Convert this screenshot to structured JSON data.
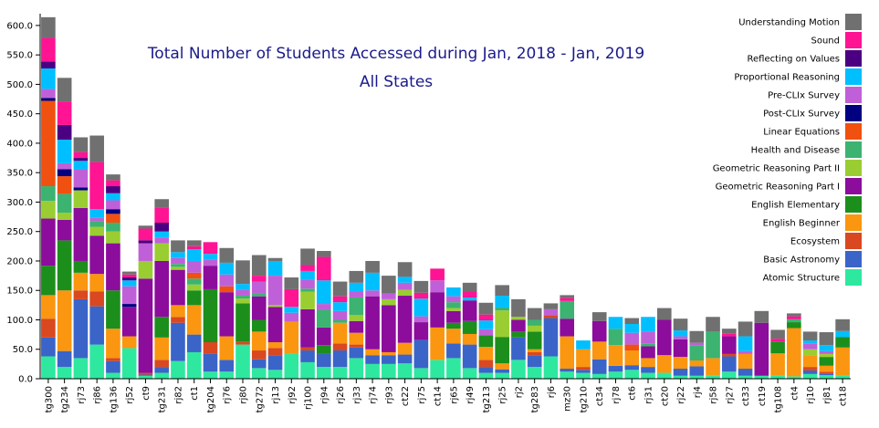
{
  "chart_data": {
    "type": "bar",
    "stacked": true,
    "title": "Total Number of Students Accessed during Jan, 2018 - Jan, 2019",
    "subtitle": "All States",
    "xlabel": "",
    "ylabel": "",
    "ylim": [
      0,
      620
    ],
    "yticks": [
      0,
      50,
      100,
      150,
      200,
      250,
      300,
      350,
      400,
      450,
      500,
      550,
      600
    ],
    "legend_position": "right",
    "categories": [
      "tg300",
      "tg234",
      "rj73",
      "rj86",
      "tg136",
      "rj52",
      "ct9",
      "tg231",
      "rj82",
      "ct1",
      "tg204",
      "rj76",
      "rj80",
      "tg272",
      "rj13",
      "rj92",
      "rj100",
      "rj94",
      "rj26",
      "rj33",
      "rj74",
      "rj93",
      "ct22",
      "rj75",
      "ct14",
      "rj65",
      "rj49",
      "tg213",
      "rj25",
      "rj2",
      "tg283",
      "rj6",
      "mz30",
      "tg210",
      "ct34",
      "rj78",
      "ct6",
      "rj31",
      "ct20",
      "rj22",
      "rj4",
      "rj58",
      "rj27",
      "ct33",
      "ct19",
      "tg108",
      "ct4",
      "rj10",
      "rj81",
      "ct18"
    ],
    "series": [
      {
        "name": "Atomic Structure",
        "color": "#2ee8a0",
        "values": [
          38,
          20,
          35,
          58,
          10,
          52,
          5,
          10,
          30,
          45,
          12,
          12,
          58,
          18,
          15,
          42,
          28,
          20,
          20,
          35,
          25,
          25,
          26,
          18,
          32,
          35,
          18,
          10,
          10,
          32,
          20,
          38,
          12,
          10,
          8,
          12,
          15,
          10,
          10,
          5,
          5,
          5,
          12,
          5,
          5,
          5,
          4,
          8,
          6,
          5
        ]
      },
      {
        "name": "Basic Astronomy",
        "color": "#3a64c8",
        "values": [
          32,
          27,
          100,
          65,
          20,
          0,
          2,
          10,
          65,
          30,
          30,
          20,
          0,
          15,
          25,
          0,
          20,
          22,
          28,
          18,
          15,
          15,
          15,
          48,
          0,
          25,
          40,
          10,
          6,
          38,
          20,
          65,
          5,
          5,
          25,
          10,
          8,
          10,
          0,
          12,
          16,
          0,
          26,
          12,
          0,
          0,
          0,
          6,
          3,
          0
        ]
      },
      {
        "name": "Ecosystem",
        "color": "#d94820",
        "values": [
          32,
          0,
          15,
          25,
          5,
          0,
          3,
          12,
          10,
          0,
          20,
          0,
          5,
          15,
          12,
          0,
          5,
          0,
          12,
          5,
          0,
          0,
          0,
          0,
          0,
          0,
          0,
          12,
          0,
          0,
          5,
          5,
          0,
          5,
          0,
          0,
          0,
          0,
          0,
          0,
          0,
          0,
          4,
          0,
          0,
          0,
          0,
          6,
          3,
          0
        ]
      },
      {
        "name": "English Beginner",
        "color": "#fa9610",
        "values": [
          40,
          103,
          30,
          30,
          50,
          20,
          0,
          38,
          20,
          50,
          0,
          40,
          0,
          32,
          10,
          55,
          0,
          0,
          35,
          20,
          10,
          5,
          20,
          0,
          55,
          25,
          18,
          22,
          10,
          0,
          5,
          0,
          55,
          30,
          30,
          35,
          25,
          15,
          30,
          20,
          10,
          30,
          0,
          25,
          0,
          38,
          82,
          20,
          10,
          48
        ]
      },
      {
        "name": "English Elementary",
        "color": "#1c8e1c",
        "values": [
          50,
          85,
          20,
          0,
          65,
          0,
          0,
          35,
          0,
          25,
          90,
          0,
          65,
          20,
          0,
          0,
          0,
          15,
          0,
          0,
          0,
          0,
          0,
          0,
          0,
          10,
          22,
          20,
          45,
          10,
          30,
          0,
          0,
          0,
          0,
          0,
          0,
          0,
          0,
          0,
          0,
          0,
          0,
          0,
          0,
          20,
          10,
          0,
          15,
          18
        ]
      },
      {
        "name": "Geometric Reasoning Part I",
        "color": "#8c0c9c",
        "values": [
          80,
          35,
          90,
          65,
          80,
          50,
          160,
          95,
          60,
          0,
          40,
          75,
          0,
          40,
          60,
          0,
          65,
          30,
          0,
          20,
          90,
          80,
          80,
          30,
          60,
          20,
          35,
          0,
          0,
          20,
          0,
          0,
          30,
          0,
          35,
          0,
          0,
          20,
          60,
          30,
          0,
          0,
          30,
          0,
          90,
          0,
          0,
          0,
          0,
          0
        ]
      },
      {
        "name": "Geometric Reasoning Part II",
        "color": "#9acd32",
        "values": [
          30,
          12,
          30,
          15,
          20,
          0,
          30,
          30,
          5,
          10,
          0,
          0,
          8,
          0,
          3,
          0,
          30,
          0,
          0,
          10,
          0,
          10,
          10,
          0,
          0,
          5,
          0,
          0,
          45,
          5,
          10,
          0,
          0,
          0,
          0,
          0,
          0,
          0,
          0,
          0,
          0,
          0,
          0,
          0,
          0,
          0,
          0,
          10,
          5,
          0
        ]
      },
      {
        "name": "Health and Disease",
        "color": "#3cb371",
        "values": [
          25,
          32,
          0,
          10,
          15,
          0,
          0,
          0,
          5,
          10,
          0,
          0,
          5,
          5,
          0,
          0,
          5,
          30,
          5,
          30,
          0,
          0,
          0,
          0,
          0,
          10,
          0,
          0,
          5,
          0,
          10,
          0,
          30,
          0,
          0,
          28,
          0,
          5,
          0,
          0,
          25,
          45,
          0,
          0,
          0,
          0,
          5,
          0,
          0,
          0
        ]
      },
      {
        "name": "Linear Equations",
        "color": "#f05010",
        "values": [
          145,
          30,
          0,
          0,
          15,
          0,
          0,
          0,
          0,
          10,
          0,
          10,
          0,
          0,
          0,
          0,
          0,
          0,
          0,
          0,
          0,
          0,
          0,
          0,
          0,
          0,
          0,
          0,
          0,
          0,
          0,
          0,
          0,
          0,
          0,
          0,
          10,
          0,
          0,
          0,
          0,
          0,
          0,
          0,
          0,
          0,
          0,
          0,
          0,
          0
        ]
      },
      {
        "name": "Post-CLIx Survey",
        "color": "#000080",
        "values": [
          5,
          12,
          5,
          0,
          8,
          5,
          0,
          0,
          0,
          0,
          0,
          0,
          0,
          0,
          0,
          0,
          0,
          0,
          0,
          0,
          0,
          0,
          0,
          0,
          0,
          0,
          0,
          0,
          0,
          0,
          0,
          0,
          0,
          0,
          0,
          0,
          0,
          0,
          0,
          0,
          0,
          0,
          0,
          0,
          0,
          0,
          0,
          0,
          0,
          0
        ]
      },
      {
        "name": "Pre-CLIx Survey",
        "color": "#c060d8",
        "values": [
          15,
          10,
          30,
          5,
          15,
          30,
          30,
          10,
          10,
          20,
          10,
          20,
          10,
          20,
          50,
          15,
          15,
          10,
          15,
          10,
          10,
          10,
          12,
          10,
          20,
          10,
          0,
          10,
          0,
          0,
          0,
          10,
          0,
          0,
          0,
          0,
          20,
          20,
          0,
          5,
          5,
          0,
          0,
          5,
          0,
          0,
          0,
          10,
          5,
          0
        ]
      },
      {
        "name": "Proportional Reasoning",
        "color": "#00bfff",
        "values": [
          35,
          40,
          15,
          15,
          12,
          10,
          0,
          10,
          10,
          20,
          10,
          20,
          10,
          0,
          25,
          10,
          15,
          40,
          15,
          15,
          30,
          0,
          10,
          30,
          0,
          15,
          5,
          15,
          20,
          0,
          0,
          0,
          0,
          15,
          0,
          20,
          15,
          25,
          0,
          10,
          0,
          0,
          0,
          25,
          0,
          0,
          0,
          5,
          10,
          10
        ]
      },
      {
        "name": "Reflecting on Values",
        "color": "#4b0082",
        "values": [
          12,
          25,
          5,
          0,
          12,
          5,
          5,
          15,
          0,
          0,
          0,
          0,
          0,
          0,
          0,
          0,
          0,
          0,
          0,
          0,
          0,
          0,
          0,
          0,
          0,
          0,
          0,
          0,
          0,
          0,
          0,
          0,
          0,
          0,
          0,
          0,
          0,
          0,
          0,
          0,
          0,
          0,
          0,
          0,
          0,
          0,
          0,
          0,
          0,
          0
        ]
      },
      {
        "name": "Sound",
        "color": "#ff1493",
        "values": [
          40,
          40,
          10,
          80,
          10,
          5,
          20,
          25,
          0,
          5,
          20,
          0,
          0,
          10,
          0,
          30,
          10,
          40,
          10,
          0,
          0,
          0,
          0,
          10,
          20,
          0,
          10,
          10,
          0,
          0,
          0,
          0,
          5,
          0,
          0,
          0,
          0,
          0,
          0,
          0,
          0,
          0,
          5,
          0,
          0,
          5,
          5,
          0,
          0,
          0
        ]
      },
      {
        "name": "Understanding Motion",
        "color": "#707070",
        "values": [
          35,
          40,
          25,
          45,
          10,
          5,
          5,
          15,
          20,
          10,
          0,
          25,
          40,
          35,
          5,
          20,
          28,
          10,
          25,
          20,
          20,
          30,
          25,
          20,
          0,
          0,
          15,
          20,
          18,
          30,
          20,
          10,
          5,
          0,
          15,
          0,
          10,
          0,
          20,
          20,
          20,
          25,
          8,
          25,
          20,
          15,
          5,
          15,
          22,
          20
        ]
      }
    ]
  }
}
